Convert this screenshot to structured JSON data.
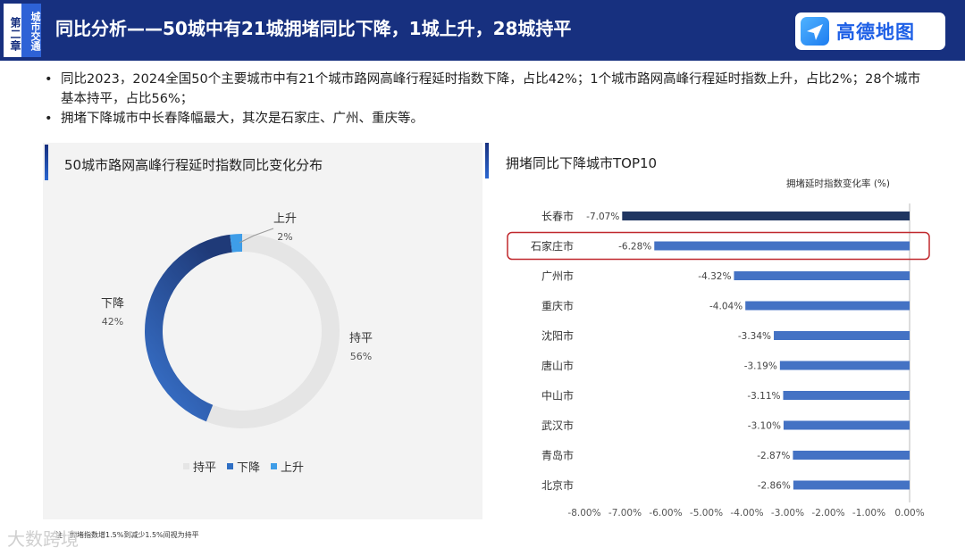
{
  "header": {
    "chapter_num": "第二章",
    "chapter_name": "城市交通",
    "title": "同比分析——50城中有21城拥堵同比下降，1城上升，28城持平",
    "logo_text": "高德地图"
  },
  "bullets": [
    "同比2023，2024全国50个主要城市中有21个城市路网高峰行程延时指数下降，占比42%；1个城市路网高峰行程延时指数上升，占比2%；28个城市基本持平，占比56%；",
    "拥堵下降城市中长春降幅最大，其次是石家庄、广州、重庆等。"
  ],
  "colors": {
    "header_bg": "#17307f",
    "flat": "#e5e5e5",
    "down": "#2f6fc4",
    "down_dark": "#1f3a78",
    "up": "#3e9de8",
    "bar_top": "#1f3561",
    "bar": "#4472c4",
    "highlight": "#c0282d"
  },
  "chart_data": [
    {
      "type": "pie",
      "title": "50城市路网高峰行程延时指数同比变化分布",
      "slices": [
        {
          "name": "持平",
          "value": 56,
          "label": "56%"
        },
        {
          "name": "下降",
          "value": 42,
          "label": "42%"
        },
        {
          "name": "上升",
          "value": 2,
          "label": "2%"
        }
      ],
      "legend": [
        "持平",
        "下降",
        "上升"
      ],
      "legend_position": "bottom",
      "donut": true
    },
    {
      "type": "bar",
      "orientation": "horizontal",
      "title": "拥堵同比下降城市TOP10",
      "unit_label": "拥堵延时指数变化率 (%)",
      "categories": [
        "长春市",
        "石家庄市",
        "广州市",
        "重庆市",
        "沈阳市",
        "唐山市",
        "中山市",
        "武汉市",
        "青岛市",
        "北京市"
      ],
      "values": [
        -7.07,
        -6.28,
        -4.32,
        -4.04,
        -3.34,
        -3.19,
        -3.11,
        -3.1,
        -2.87,
        -2.86
      ],
      "value_labels": [
        "-7.07%",
        "-6.28%",
        "-4.32%",
        "-4.04%",
        "-3.34%",
        "-3.19%",
        "-3.11%",
        "-3.10%",
        "-2.87%",
        "-2.86%"
      ],
      "xlim": [
        -8,
        0
      ],
      "ticks": [
        -8,
        -7,
        -6,
        -5,
        -4,
        -3,
        -2,
        -1,
        0
      ],
      "tick_labels": [
        "-8.00%",
        "-7.00%",
        "-6.00%",
        "-5.00%",
        "-4.00%",
        "-3.00%",
        "-2.00%",
        "-1.00%",
        "0.00%"
      ],
      "highlight": "石家庄市"
    }
  ],
  "footer": {
    "note": "注：拥堵指数增1.5%到减少1.5%间视为持平",
    "watermark": "大数跨境"
  }
}
